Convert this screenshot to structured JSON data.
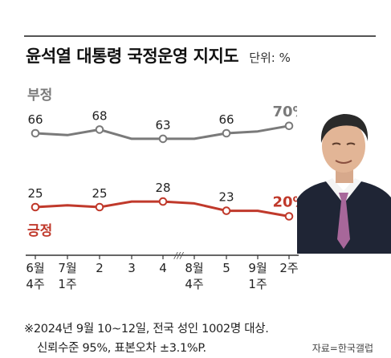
{
  "header": {
    "title": "윤석열 대통령 국정운영 지지도",
    "unit": "단위: %"
  },
  "colors": {
    "negative": "#7a7a7a",
    "positive": "#c0392b",
    "axis": "#333333"
  },
  "chart_data": {
    "type": "line",
    "title": "윤석열 대통령 국정운영 지지도",
    "unit": "%",
    "categories": [
      {
        "line1": "6월",
        "line2": "4주"
      },
      {
        "line1": "7월",
        "line2": "1주"
      },
      {
        "line1": "2",
        "line2": ""
      },
      {
        "line1": "3",
        "line2": ""
      },
      {
        "line1": "4",
        "line2": ""
      },
      {
        "line1": "8월",
        "line2": "4주"
      },
      {
        "line1": "5",
        "line2": ""
      },
      {
        "line1": "9월",
        "line2": "1주"
      },
      {
        "line1": "2주",
        "line2": ""
      }
    ],
    "axis_break_after_index": 4,
    "axis_break_label": "///",
    "series": [
      {
        "name": "부정",
        "values": [
          66,
          65,
          68,
          63,
          63,
          63,
          66,
          67,
          70
        ],
        "labels": [
          "66",
          "",
          "68",
          "",
          "63",
          "",
          "66",
          "",
          "70%"
        ]
      },
      {
        "name": "긍정",
        "values": [
          25,
          26,
          25,
          28,
          28,
          27,
          23,
          23,
          20
        ],
        "labels": [
          "25",
          "",
          "25",
          "",
          "28",
          "",
          "23",
          "",
          "20%"
        ]
      }
    ],
    "grid": false,
    "legend": "inline-labels"
  },
  "footnote": {
    "line1": "※2024년 9월 10~12일, 전국 성인 1002명 대상.",
    "line2": "신뢰수준 95%, 표본오차 ±3.1%P."
  },
  "source": "자료=한국갤럽",
  "photo": {
    "icon": "president-portrait"
  }
}
